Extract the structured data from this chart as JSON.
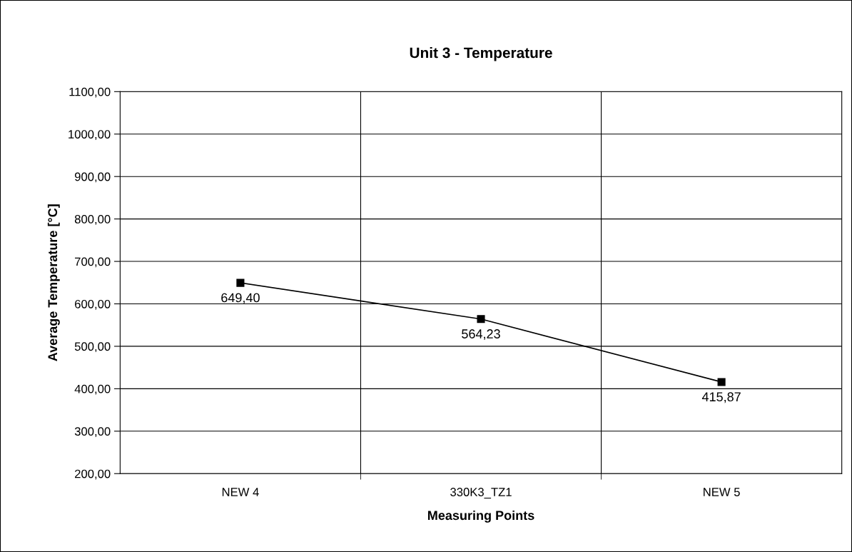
{
  "chart_data": {
    "type": "line",
    "title": "Unit 3 - Temperature",
    "xlabel": "Measuring Points",
    "ylabel": "Average Temperature [°C]",
    "categories": [
      "NEW 4",
      "330K3_TZ1",
      "NEW 5"
    ],
    "series": [
      {
        "color": "#000000",
        "values": [
          649.4,
          564.23,
          415.87
        ],
        "value_labels": [
          "649,40",
          "564,23",
          "415,87"
        ]
      }
    ],
    "ylim": [
      200,
      1100
    ],
    "yticks": [
      {
        "value": 200,
        "label": "200,00"
      },
      {
        "value": 300,
        "label": "300,00"
      },
      {
        "value": 400,
        "label": "400,00"
      },
      {
        "value": 500,
        "label": "500,00"
      },
      {
        "value": 600,
        "label": "600,00"
      },
      {
        "value": 700,
        "label": "700,00"
      },
      {
        "value": 800,
        "label": "800,00"
      },
      {
        "value": 900,
        "label": "900,00"
      },
      {
        "value": 1000,
        "label": "1000,00"
      },
      {
        "value": 1100,
        "label": "1100,00"
      }
    ],
    "grid": true,
    "marker": "square",
    "line_style": "solid"
  }
}
